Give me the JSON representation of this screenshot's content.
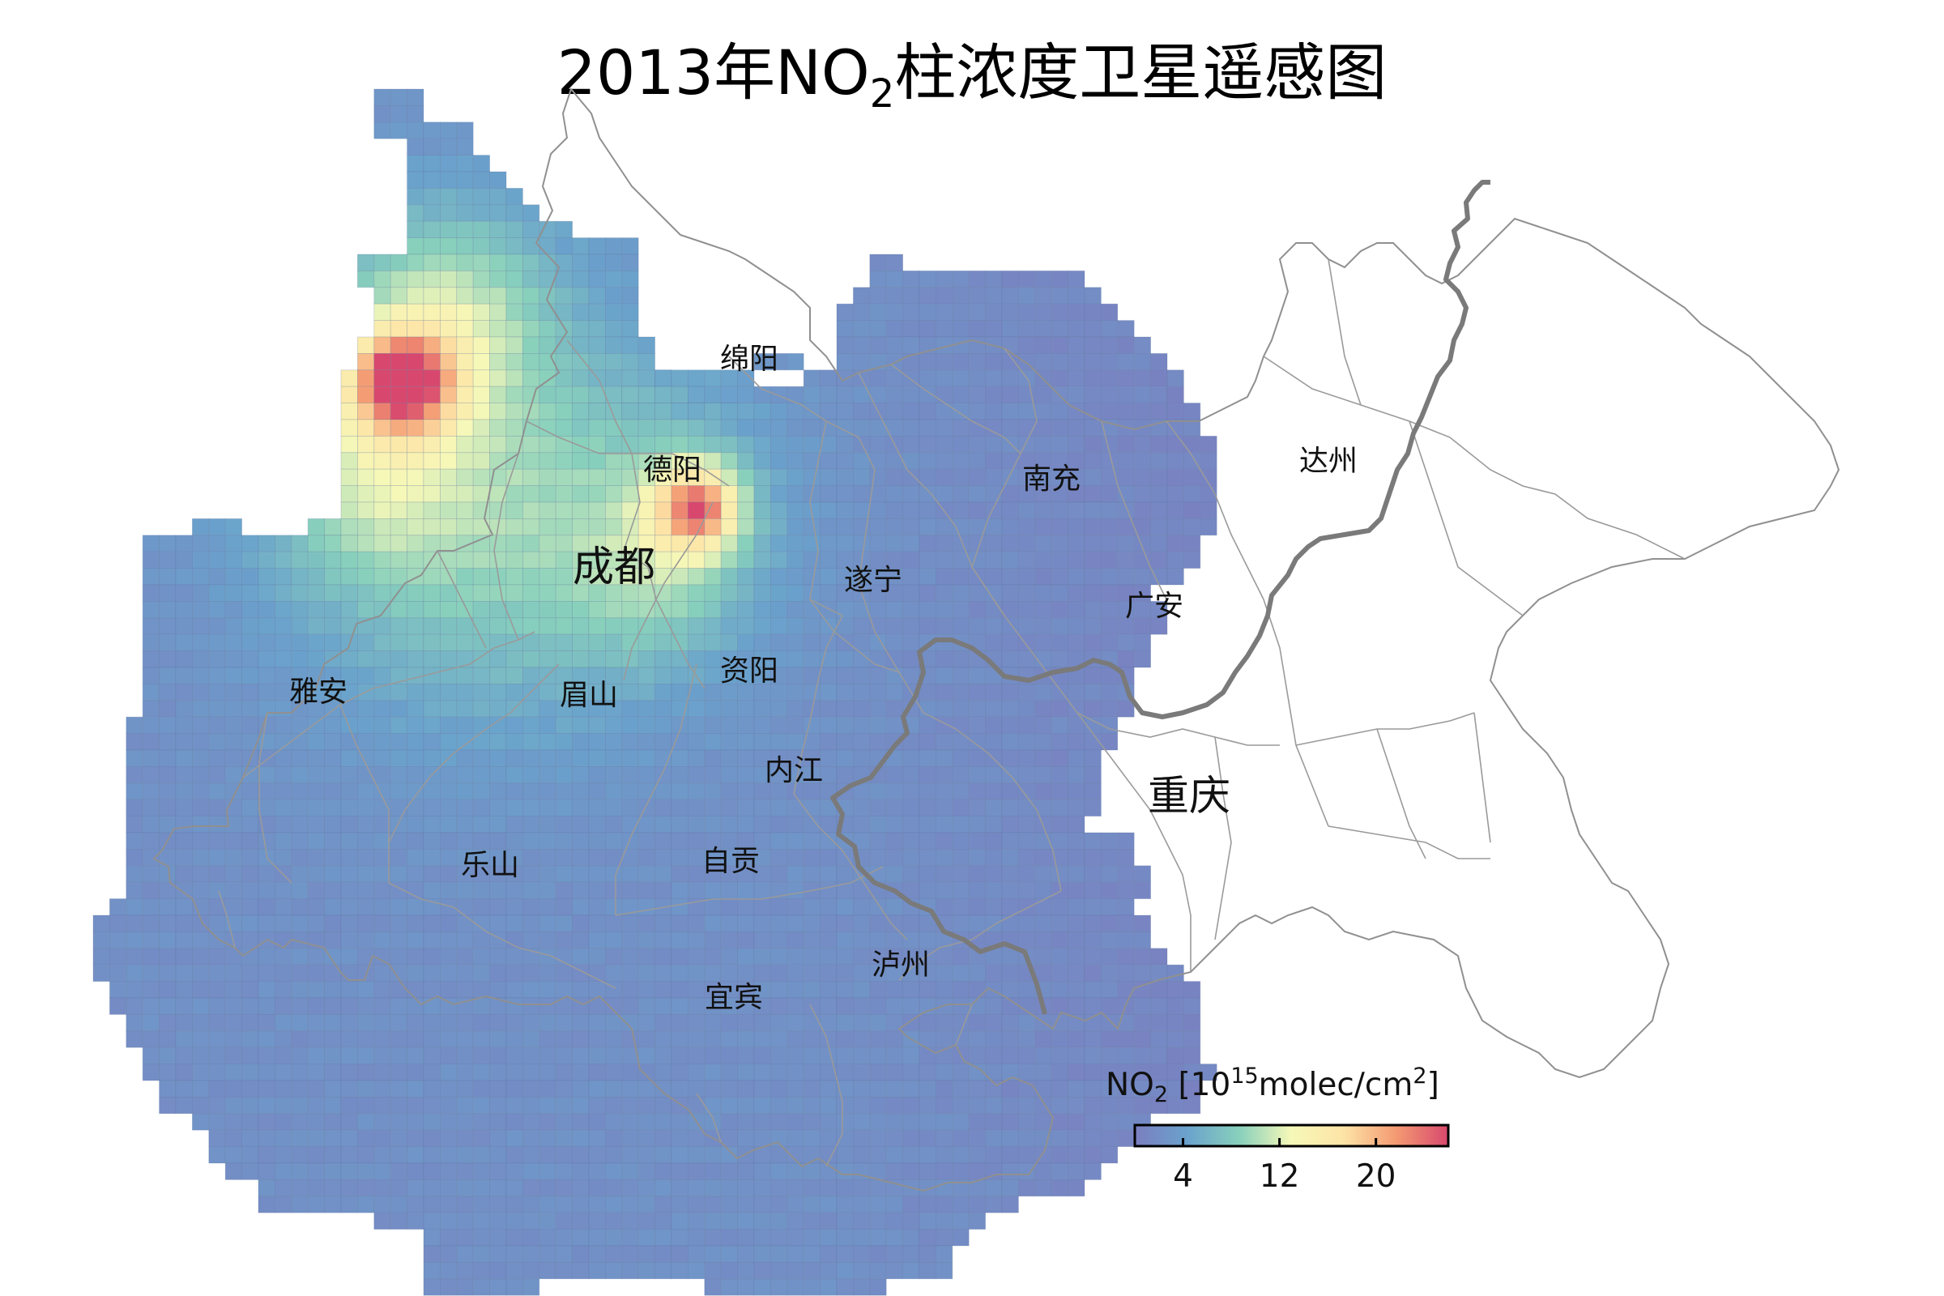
{
  "title": {
    "prefix": "2013年NO",
    "subscript": "2",
    "suffix": "柱浓度卫星遥感图"
  },
  "cities": [
    {
      "name": "绵阳",
      "major": false
    },
    {
      "name": "德阳",
      "major": false
    },
    {
      "name": "成都",
      "major": true
    },
    {
      "name": "南充",
      "major": false
    },
    {
      "name": "达州",
      "major": false
    },
    {
      "name": "遂宁",
      "major": false
    },
    {
      "name": "广安",
      "major": false
    },
    {
      "name": "资阳",
      "major": false
    },
    {
      "name": "眉山",
      "major": false
    },
    {
      "name": "雅安",
      "major": false
    },
    {
      "name": "内江",
      "major": false
    },
    {
      "name": "重庆",
      "major": true
    },
    {
      "name": "乐山",
      "major": false
    },
    {
      "name": "自贡",
      "major": false
    },
    {
      "name": "泸州",
      "major": false
    },
    {
      "name": "宜宾",
      "major": false
    }
  ],
  "legend": {
    "title_main": "NO",
    "title_sub": "2",
    "title_unit_open": "[10",
    "title_unit_sup": "15",
    "title_unit_mid": "molec/cm",
    "title_unit_sup2": "2",
    "title_unit_close": "]",
    "range": [
      0,
      26
    ],
    "ticks": [
      4,
      12,
      20
    ],
    "colors": [
      "#7b7ec0",
      "#6aa2cc",
      "#88d0bc",
      "#f6f8b8",
      "#fde4a6",
      "#f49a72",
      "#d8486e"
    ]
  }
}
